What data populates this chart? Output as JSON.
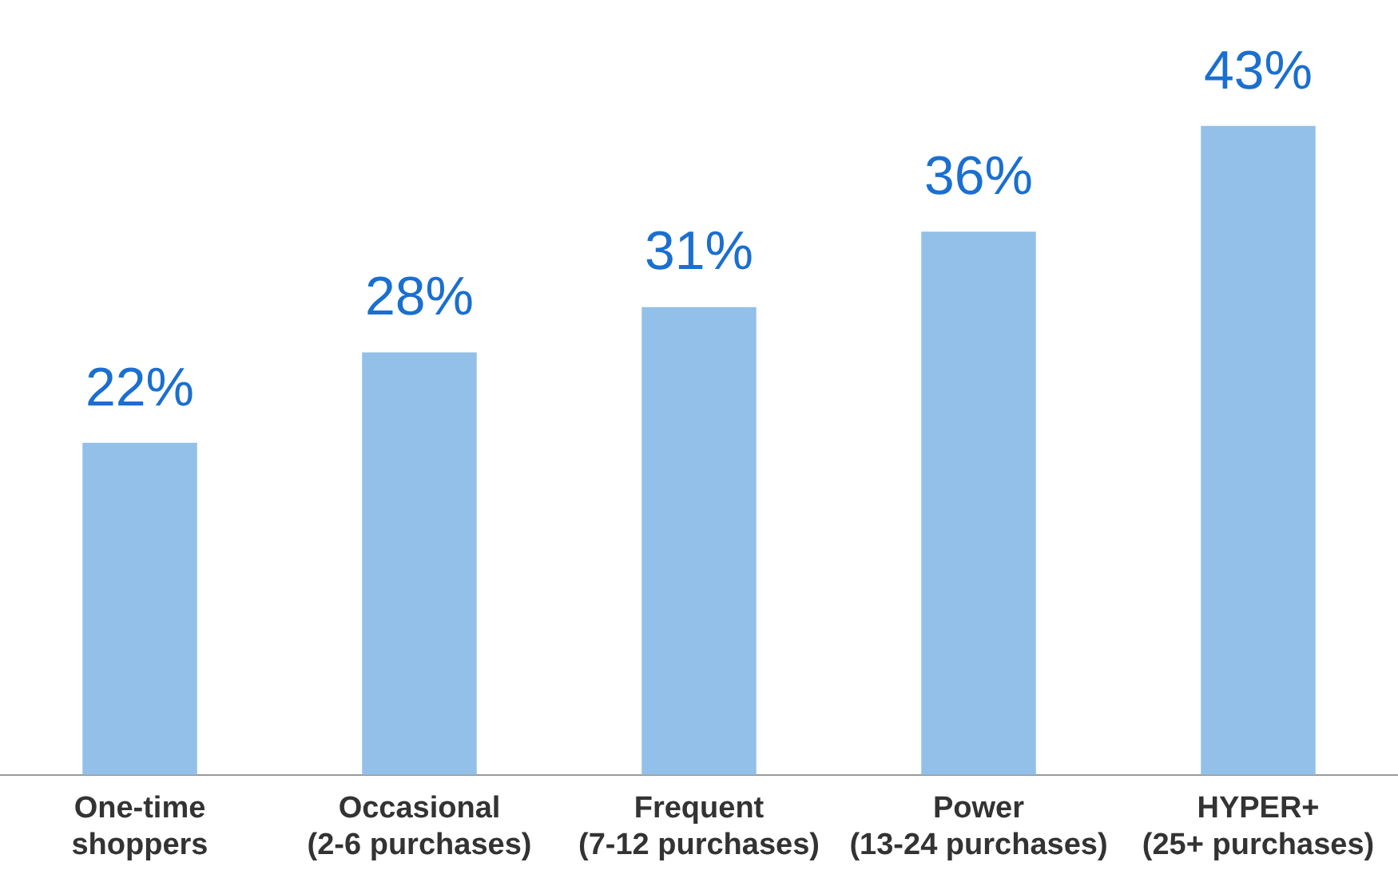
{
  "chart_data": {
    "type": "bar",
    "categories": [
      "One-time\nshoppers",
      "Occasional\n(2-6 purchases)",
      "Frequent\n(7-12 purchases)",
      "Power\n(13-24 purchases)",
      "HYPER+\n(25+ purchases)"
    ],
    "values": [
      22,
      28,
      31,
      36,
      43
    ],
    "value_labels": [
      "22%",
      "28%",
      "31%",
      "36%",
      "43%"
    ],
    "color": "#92c0e8",
    "tick_labels": "x",
    "grid": false,
    "legend": false
  }
}
